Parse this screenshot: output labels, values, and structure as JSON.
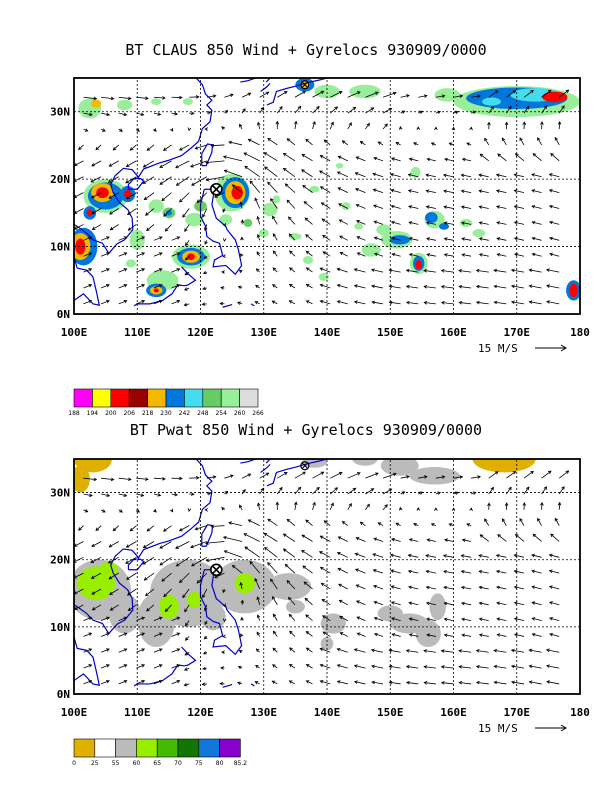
{
  "panels": [
    {
      "title": "BT CLAUS 850 Wind + Gyrelocs 930909/0000",
      "colorbar": {
        "colors": [
          "#ff00ff",
          "#ffff00",
          "#ff0000",
          "#990000",
          "#f5b800",
          "#0077dd",
          "#44ddee",
          "#66cc66",
          "#99ee99",
          "#dddddd"
        ],
        "labels": [
          "188",
          "194",
          "200",
          "206",
          "218",
          "230",
          "242",
          "248",
          "254",
          "260",
          "266"
        ]
      }
    },
    {
      "title": "BT Pwat 850 Wind + Gyrelocs 930909/0000",
      "colorbar": {
        "colors": [
          "#e0b000",
          "#ffffff",
          "#bbbbbb",
          "#99ee00",
          "#44bb00",
          "#117700",
          "#1177dd",
          "#8800cc"
        ],
        "labels": [
          "0",
          "25",
          "55",
          "60",
          "65",
          "70",
          "75",
          "80",
          "85.2"
        ]
      }
    }
  ],
  "axes": {
    "x_ticks": [
      "100E",
      "110E",
      "120E",
      "130E",
      "140E",
      "150E",
      "160E",
      "170E",
      "180"
    ],
    "y_ticks": [
      "0N",
      "10N",
      "20N",
      "30N"
    ]
  },
  "reference_vector": "15 M/S",
  "gyre_marker": {
    "lon": 122.5,
    "lat": 18.5,
    "symbol": "circle-x"
  },
  "colors": {
    "coastline": "#0000cc",
    "grid": "#000000",
    "wind_arrow": "#000000"
  }
}
